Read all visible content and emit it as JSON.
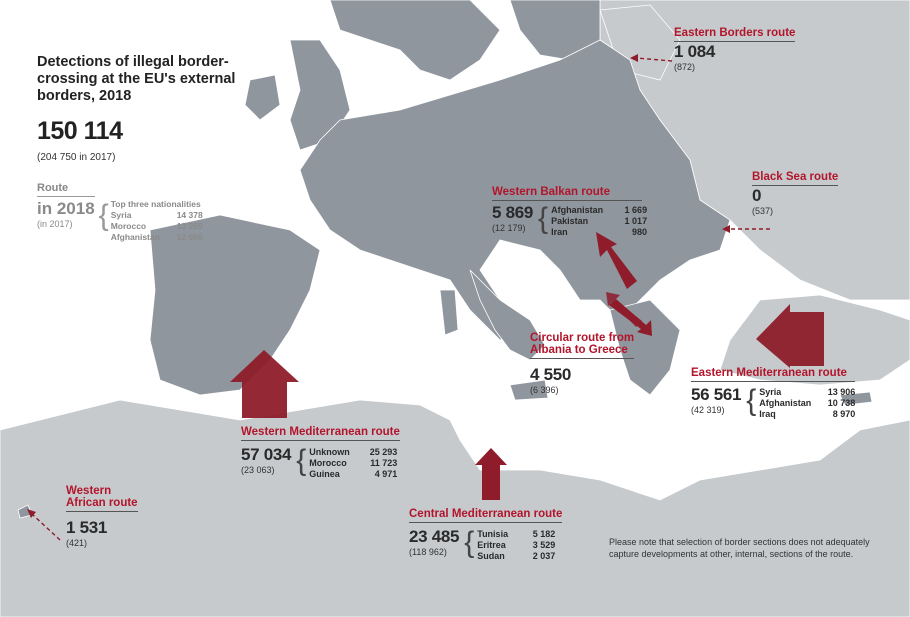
{
  "title": "Detections of illegal border-crossing at the EU's external borders, 2018",
  "total": {
    "value": "150 114",
    "previous": "(204 750 in 2017)"
  },
  "legend": {
    "heading": "Route",
    "year_label": "in 2018",
    "prev_label": "(in 2017)",
    "nationalities_heading": "Top three nationalities",
    "nationalities": [
      {
        "name": "Syria",
        "value": "14 378"
      },
      {
        "name": "Morocco",
        "value": "13 269"
      },
      {
        "name": "Afghanistan",
        "value": "12 666"
      }
    ]
  },
  "routes": {
    "eastern_borders": {
      "title": "Eastern Borders route",
      "value": "1 084",
      "previous": "(872)"
    },
    "black_sea": {
      "title": "Black Sea route",
      "value": "0",
      "previous": "(537)"
    },
    "western_balkan": {
      "title": "Western Balkan route",
      "value": "5 869",
      "previous": "(12 179)",
      "nationalities": [
        {
          "name": "Afghanistan",
          "value": "1 669"
        },
        {
          "name": "Pakistan",
          "value": "1 017"
        },
        {
          "name": "Iran",
          "value": "980"
        }
      ]
    },
    "circular": {
      "title_line1": "Circular route from",
      "title_line2": "Albania to Greece",
      "value": "4 550",
      "previous": "(6 396)"
    },
    "eastern_med": {
      "title": "Eastern Mediterranean route",
      "value": "56 561",
      "previous": "(42 319)",
      "nationalities": [
        {
          "name": "Syria",
          "value": "13 906"
        },
        {
          "name": "Afghanistan",
          "value": "10 738"
        },
        {
          "name": "Iraq",
          "value": "8 970"
        }
      ]
    },
    "western_med": {
      "title": "Western Mediterranean route",
      "value": "57 034",
      "previous": "(23 063)",
      "nationalities": [
        {
          "name": "Unknown",
          "value": "25 293"
        },
        {
          "name": "Morocco",
          "value": "11 723"
        },
        {
          "name": "Guinea",
          "value": "4 971"
        }
      ]
    },
    "central_med": {
      "title": "Central Mediterranean route",
      "value": "23 485",
      "previous": "(118 962)",
      "nationalities": [
        {
          "name": "Tunisia",
          "value": "5 182"
        },
        {
          "name": "Eritrea",
          "value": "3 529"
        },
        {
          "name": "Sudan",
          "value": "2 037"
        }
      ]
    },
    "western_african": {
      "title_line1": "Western",
      "title_line2": "African route",
      "value": "1 531",
      "previous": "(421)"
    }
  },
  "note": "Please note that selection of border sections does not adequately capture developments at other, internal, sections of the route.",
  "colors": {
    "land_eu": "#8f969e",
    "land_other": "#c6cacd",
    "sea": "#ffffff",
    "accent": "#b2152b",
    "arrow": "#8e1c2a"
  }
}
